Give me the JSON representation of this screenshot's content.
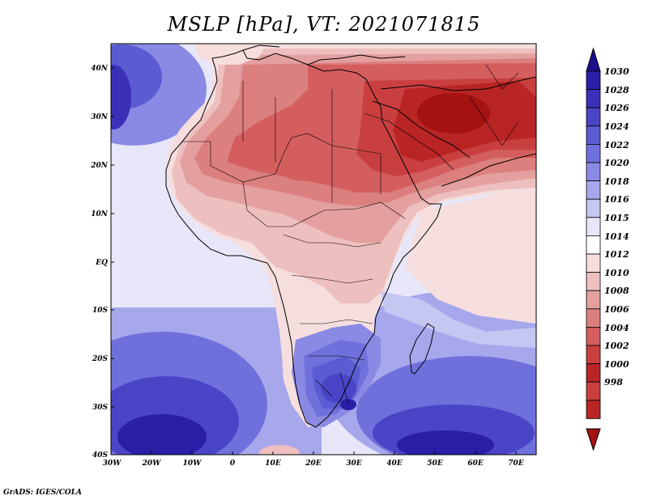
{
  "title": "MSLP [hPa], VT: 2021071815",
  "credit": "GrADS: IGES/COLA",
  "map": {
    "lat_ticks": [
      "40N",
      "30N",
      "20N",
      "10N",
      "EQ",
      "10S",
      "20S",
      "30S",
      "40S"
    ],
    "lon_ticks": [
      "30W",
      "20W",
      "10W",
      "0",
      "10E",
      "20E",
      "30E",
      "40E",
      "50E",
      "60E",
      "70E"
    ]
  },
  "colorbar": {
    "levels": [
      "1030",
      "1028",
      "1026",
      "1024",
      "1022",
      "1020",
      "1018",
      "1016",
      "1015",
      "1014",
      "1012",
      "1010",
      "1008",
      "1006",
      "1004",
      "1002",
      "1000",
      "998"
    ],
    "colors": [
      "#1c0f8c",
      "#2a1ea6",
      "#3b31b8",
      "#4a45c6",
      "#5b5bd2",
      "#7070dc",
      "#8a8ae4",
      "#a7a7ec",
      "#c6c6f3",
      "#e7e7f9",
      "#ffffff",
      "#f6dede",
      "#eebfbf",
      "#e49f9f",
      "#dc7f7f",
      "#d45e5e",
      "#c93f3f",
      "#b92424",
      "#a51212"
    ]
  }
}
